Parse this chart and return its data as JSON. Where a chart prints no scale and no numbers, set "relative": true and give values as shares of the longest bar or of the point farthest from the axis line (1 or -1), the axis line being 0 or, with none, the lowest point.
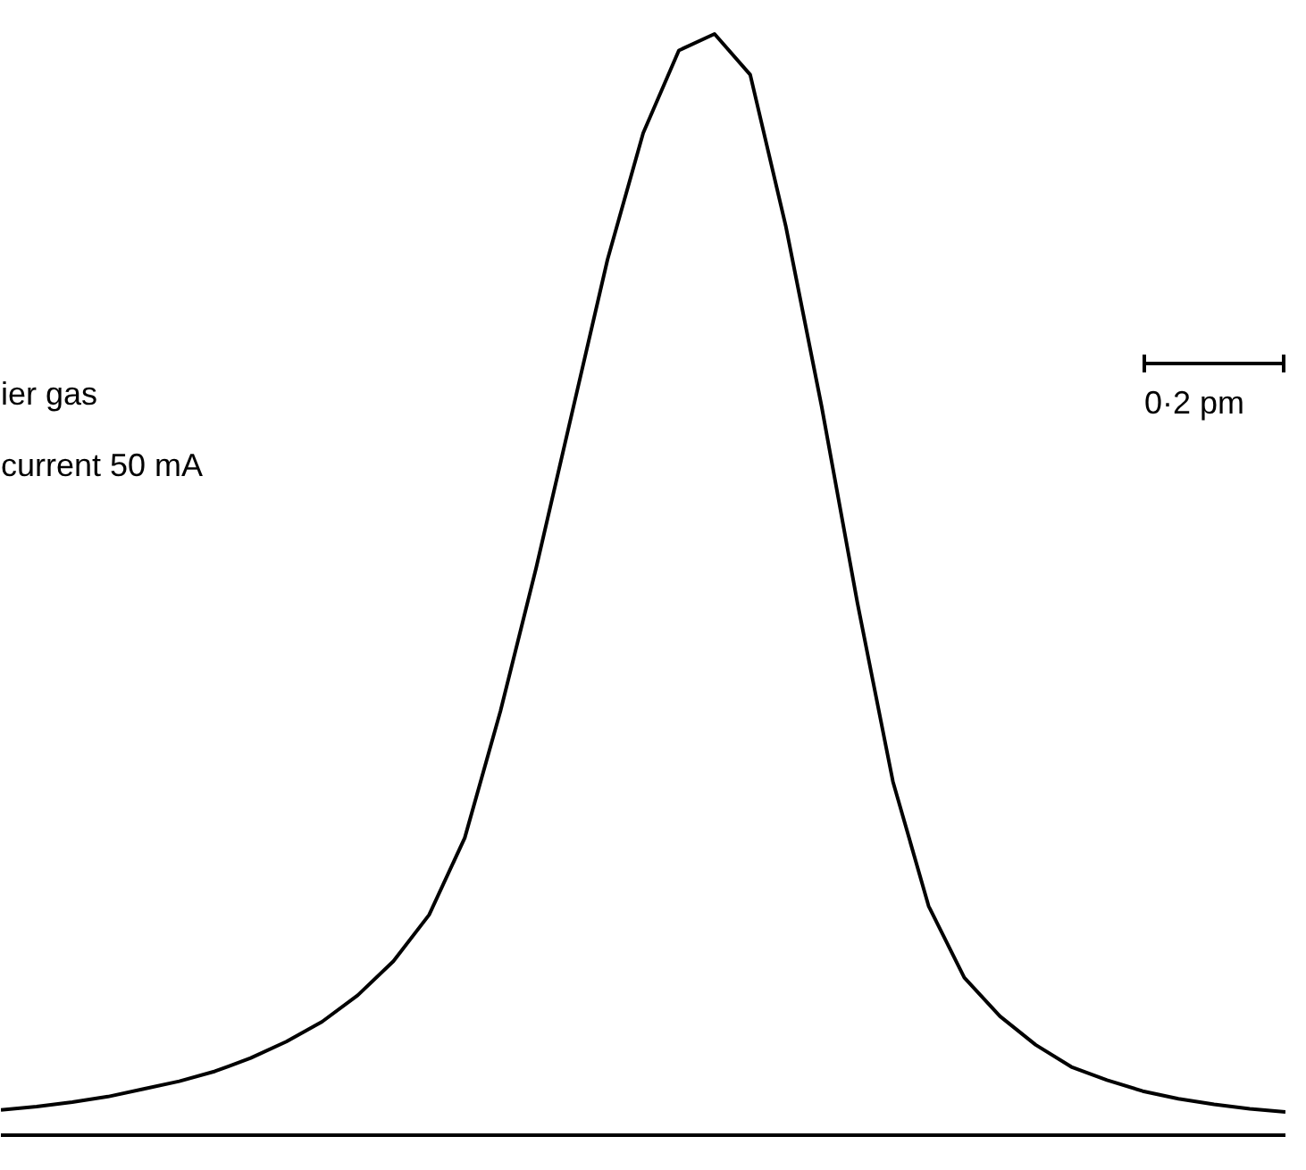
{
  "chart_data": {
    "type": "line",
    "relative": true,
    "categories": [
      null,
      null,
      null,
      null,
      null,
      null,
      null,
      null,
      null,
      null,
      null,
      null,
      null,
      null,
      null,
      null,
      null,
      null,
      null,
      null,
      null,
      null,
      null,
      null,
      null,
      null,
      null,
      null,
      null,
      null,
      null,
      null,
      null,
      null,
      null,
      null,
      null
    ],
    "series": [
      {
        "color": "#000000",
        "values": [
          0.023,
          0.026,
          0.03,
          0.035,
          0.042,
          0.049,
          0.058,
          0.07,
          0.085,
          0.103,
          0.127,
          0.158,
          0.2,
          0.27,
          0.385,
          0.515,
          0.655,
          0.795,
          0.91,
          0.985,
          1.0,
          0.963,
          0.825,
          0.662,
          0.484,
          0.321,
          0.208,
          0.143,
          0.108,
          0.082,
          0.062,
          0.05,
          0.04,
          0.033,
          0.028,
          0.024,
          0.021
        ]
      }
    ],
    "annotations": [
      "ier gas",
      "current  50 mA",
      "0·2 pm"
    ],
    "grid": false,
    "marker": "none",
    "line_style": "solid"
  }
}
